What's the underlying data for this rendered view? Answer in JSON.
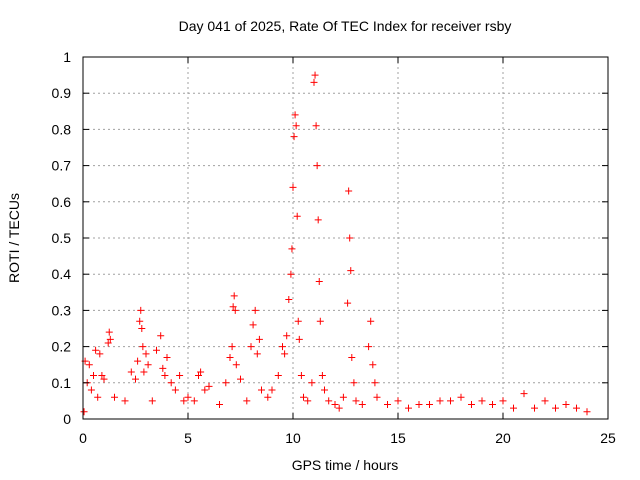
{
  "chart_data": {
    "type": "scatter",
    "title": "Day 041 of 2025, Rate Of TEC Index for receiver rsby",
    "xlabel": "GPS time / hours",
    "ylabel": "ROTI / TECUs",
    "xlim": [
      0,
      25
    ],
    "ylim": [
      0,
      1
    ],
    "xticks": [
      "0",
      "5",
      "10",
      "15",
      "20",
      "25"
    ],
    "yticks": [
      "0",
      "0.1",
      "0.2",
      "0.3",
      "0.4",
      "0.5",
      "0.6",
      "0.7",
      "0.8",
      "0.9",
      "1"
    ],
    "grid": true,
    "marker": "plus",
    "color": "#ff0000",
    "series": [
      {
        "x": [
          0.05,
          0.1,
          0.2,
          0.3,
          0.4,
          0.5,
          0.6,
          0.7,
          0.8,
          0.9,
          1.0,
          1.2,
          1.25,
          1.3,
          1.5,
          2.0,
          2.3,
          2.5,
          2.6,
          2.7,
          2.75,
          2.8,
          2.85,
          2.9,
          3.0,
          3.1,
          3.3,
          3.5,
          3.7,
          3.8,
          3.9,
          4.0,
          4.2,
          4.4,
          4.6,
          4.8,
          5.0,
          5.3,
          5.5,
          5.6,
          5.8,
          6.0,
          6.5,
          6.8,
          7.0,
          7.1,
          7.15,
          7.2,
          7.25,
          7.3,
          7.5,
          7.8,
          8.0,
          8.1,
          8.2,
          8.3,
          8.4,
          8.5,
          8.8,
          9.0,
          9.3,
          9.5,
          9.6,
          9.7,
          9.8,
          9.9,
          9.95,
          10.0,
          10.05,
          10.1,
          10.15,
          10.2,
          10.25,
          10.3,
          10.4,
          10.5,
          10.7,
          10.9,
          11.0,
          11.05,
          11.1,
          11.15,
          11.2,
          11.25,
          11.3,
          11.4,
          11.5,
          11.7,
          12.0,
          12.2,
          12.4,
          12.6,
          12.65,
          12.7,
          12.75,
          12.8,
          12.9,
          13.0,
          13.3,
          13.6,
          13.7,
          13.8,
          13.9,
          14.0,
          14.5,
          15.0,
          15.5,
          16.0,
          16.5,
          17.0,
          17.5,
          18.0,
          18.5,
          19.0,
          19.5,
          20.0,
          20.5,
          21.0,
          21.5,
          22.0,
          22.5,
          23.0,
          23.5,
          24.0
        ],
        "y": [
          0.02,
          0.16,
          0.1,
          0.15,
          0.08,
          0.12,
          0.19,
          0.06,
          0.18,
          0.12,
          0.11,
          0.21,
          0.24,
          0.22,
          0.06,
          0.05,
          0.13,
          0.11,
          0.16,
          0.27,
          0.3,
          0.25,
          0.2,
          0.13,
          0.18,
          0.15,
          0.05,
          0.19,
          0.23,
          0.14,
          0.12,
          0.17,
          0.1,
          0.08,
          0.12,
          0.05,
          0.06,
          0.05,
          0.12,
          0.13,
          0.08,
          0.09,
          0.04,
          0.1,
          0.17,
          0.2,
          0.31,
          0.34,
          0.3,
          0.15,
          0.11,
          0.05,
          0.2,
          0.26,
          0.3,
          0.18,
          0.22,
          0.08,
          0.06,
          0.08,
          0.12,
          0.2,
          0.18,
          0.23,
          0.33,
          0.4,
          0.47,
          0.64,
          0.78,
          0.84,
          0.81,
          0.56,
          0.27,
          0.22,
          0.12,
          0.06,
          0.05,
          0.1,
          0.93,
          0.95,
          0.81,
          0.7,
          0.55,
          0.38,
          0.27,
          0.12,
          0.08,
          0.05,
          0.04,
          0.03,
          0.06,
          0.32,
          0.63,
          0.5,
          0.41,
          0.17,
          0.1,
          0.05,
          0.04,
          0.2,
          0.27,
          0.15,
          0.1,
          0.06,
          0.04,
          0.05,
          0.03,
          0.04,
          0.04,
          0.05,
          0.05,
          0.06,
          0.04,
          0.05,
          0.04,
          0.05,
          0.03,
          0.07,
          0.03,
          0.05,
          0.03,
          0.04,
          0.03,
          0.02
        ]
      }
    ]
  }
}
